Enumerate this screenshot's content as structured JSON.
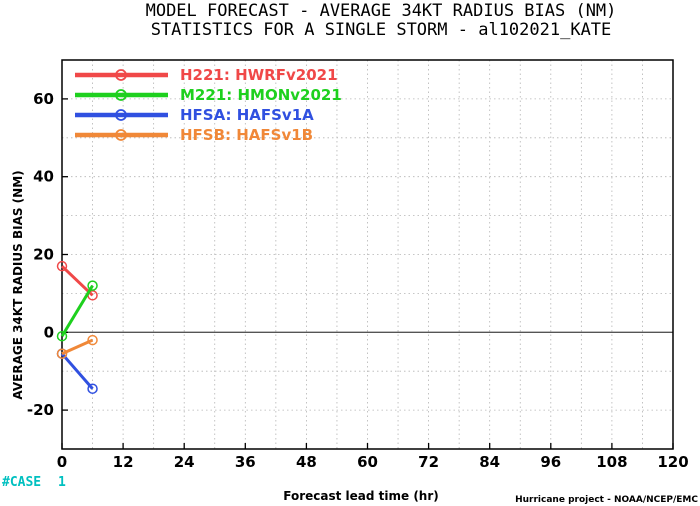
{
  "header": {
    "title_line1": "MODEL FORECAST - AVERAGE 34KT RADIUS BIAS (NM)",
    "title_line2": "STATISTICS FOR A SINGLE STORM - al102021_KATE"
  },
  "footer": {
    "case_label": "#CASE",
    "case_value": "1",
    "credit": "Hurricane project - NOAA/NCEP/EMC"
  },
  "chart_data": {
    "type": "line",
    "xlabel": "Forecast lead time (hr)",
    "ylabel": "AVERAGE 34KT RADIUS BIAS (NM)",
    "xlim": [
      0,
      120
    ],
    "ylim": [
      -30,
      70
    ],
    "xticks": [
      0,
      12,
      24,
      36,
      48,
      60,
      72,
      84,
      96,
      108,
      120
    ],
    "yticks": [
      -20,
      0,
      20,
      40,
      60
    ],
    "grid": true,
    "legend_position": "top-left",
    "series": [
      {
        "name": "H221: HWRFv2021",
        "color": "#f04848",
        "x": [
          0,
          6
        ],
        "y": [
          17,
          9.5
        ]
      },
      {
        "name": "M221: HMONv2021",
        "color": "#1ed01e",
        "x": [
          0,
          6
        ],
        "y": [
          -1,
          12
        ]
      },
      {
        "name": "HFSA: HAFSv1A",
        "color": "#3050e0",
        "x": [
          0,
          6
        ],
        "y": [
          -5.5,
          -14.5
        ]
      },
      {
        "name": "HFSB: HAFSv1B",
        "color": "#f08838",
        "x": [
          0,
          6
        ],
        "y": [
          -5.5,
          -2
        ]
      }
    ]
  }
}
